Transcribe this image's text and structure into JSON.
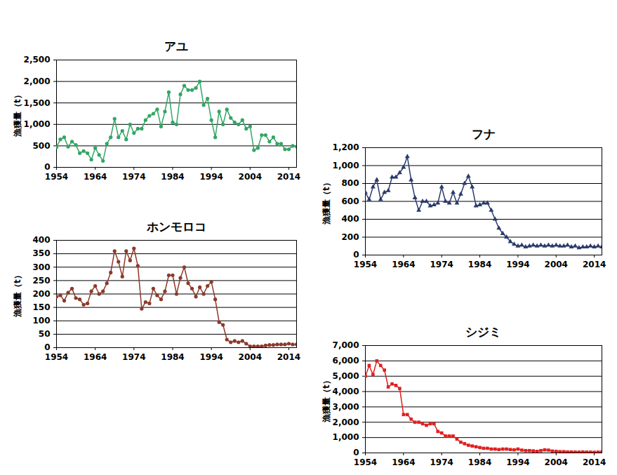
{
  "chart_data": [
    {
      "type": "line",
      "title": "アユ",
      "y_label": "漁獲量（t）",
      "color": "#33a665",
      "marker": "circle",
      "grid": true,
      "x": [
        1954,
        1955,
        1956,
        1957,
        1958,
        1959,
        1960,
        1961,
        1962,
        1963,
        1964,
        1965,
        1966,
        1967,
        1968,
        1969,
        1970,
        1971,
        1972,
        1973,
        1974,
        1975,
        1976,
        1977,
        1978,
        1979,
        1980,
        1981,
        1982,
        1983,
        1984,
        1985,
        1986,
        1987,
        1988,
        1989,
        1990,
        1991,
        1992,
        1993,
        1994,
        1995,
        1996,
        1997,
        1998,
        1999,
        2000,
        2001,
        2002,
        2003,
        2004,
        2005,
        2006,
        2007,
        2008,
        2009,
        2010,
        2011,
        2012,
        2013,
        2014,
        2015,
        2016
      ],
      "values": [
        470,
        650,
        700,
        480,
        600,
        520,
        330,
        380,
        330,
        180,
        450,
        290,
        150,
        550,
        700,
        1130,
        700,
        850,
        650,
        1000,
        800,
        900,
        900,
        1100,
        1200,
        1250,
        1350,
        950,
        1300,
        1750,
        1050,
        1000,
        1700,
        1900,
        1800,
        1800,
        1850,
        2000,
        1450,
        1600,
        1100,
        700,
        1300,
        1000,
        1350,
        1150,
        1050,
        1000,
        1100,
        900,
        950,
        400,
        450,
        750,
        750,
        600,
        700,
        550,
        550,
        420,
        420,
        500,
        480
      ],
      "xlim": [
        1954,
        2016
      ],
      "xticks": [
        1954,
        1964,
        1974,
        1984,
        1994,
        2004,
        2014
      ],
      "ylim": [
        0,
        2500
      ],
      "yticks": [
        0,
        500,
        {
          "value": 1000,
          "label": "1,000"
        },
        {
          "value": 1500,
          "label": "1,500"
        },
        {
          "value": 2000,
          "label": "2,000"
        },
        {
          "value": 2500,
          "label": "2,500"
        }
      ]
    },
    {
      "type": "line",
      "title": "フナ",
      "y_label": "漁獲量（t）",
      "color": "#2b3a6b",
      "marker": "triangle",
      "grid": true,
      "x": [
        1954,
        1955,
        1956,
        1957,
        1958,
        1959,
        1960,
        1961,
        1962,
        1963,
        1964,
        1965,
        1966,
        1967,
        1968,
        1969,
        1970,
        1971,
        1972,
        1973,
        1974,
        1975,
        1976,
        1977,
        1978,
        1979,
        1980,
        1981,
        1982,
        1983,
        1984,
        1985,
        1986,
        1987,
        1988,
        1989,
        1990,
        1991,
        1992,
        1993,
        1994,
        1995,
        1996,
        1997,
        1998,
        1999,
        2000,
        2001,
        2002,
        2003,
        2004,
        2005,
        2006,
        2007,
        2008,
        2009,
        2010,
        2011,
        2012,
        2013,
        2014,
        2015,
        2016
      ],
      "values": [
        700,
        620,
        760,
        840,
        620,
        700,
        720,
        870,
        870,
        920,
        980,
        1100,
        840,
        640,
        500,
        600,
        600,
        550,
        560,
        580,
        760,
        600,
        580,
        700,
        580,
        680,
        800,
        880,
        760,
        550,
        560,
        580,
        580,
        500,
        400,
        300,
        240,
        200,
        150,
        120,
        100,
        110,
        90,
        100,
        110,
        100,
        110,
        100,
        110,
        100,
        110,
        100,
        100,
        110,
        90,
        100,
        80,
        90,
        90,
        100,
        90,
        100,
        90
      ],
      "xlim": [
        1954,
        2016
      ],
      "xticks": [
        1954,
        1964,
        1974,
        1984,
        1994,
        2004,
        2014
      ],
      "ylim": [
        0,
        1200
      ],
      "yticks": [
        0,
        200,
        400,
        600,
        800,
        {
          "value": 1000,
          "label": "1,000"
        },
        {
          "value": 1200,
          "label": "1,200"
        }
      ]
    },
    {
      "type": "line",
      "title": "ホンモロコ",
      "y_label": "漁獲量（t）",
      "color": "#8b3a2b",
      "marker": "circle",
      "grid": true,
      "x": [
        1954,
        1955,
        1956,
        1957,
        1958,
        1959,
        1960,
        1961,
        1962,
        1963,
        1964,
        1965,
        1966,
        1967,
        1968,
        1969,
        1970,
        1971,
        1972,
        1973,
        1974,
        1975,
        1976,
        1977,
        1978,
        1979,
        1980,
        1981,
        1982,
        1983,
        1984,
        1985,
        1986,
        1987,
        1988,
        1989,
        1990,
        1991,
        1992,
        1993,
        1994,
        1995,
        1996,
        1997,
        1998,
        1999,
        2000,
        2001,
        2002,
        2003,
        2004,
        2005,
        2006,
        2007,
        2008,
        2009,
        2010,
        2011,
        2012,
        2013,
        2014,
        2015,
        2016
      ],
      "values": [
        190,
        195,
        175,
        205,
        220,
        185,
        180,
        160,
        165,
        210,
        230,
        200,
        210,
        240,
        280,
        360,
        320,
        265,
        360,
        325,
        370,
        305,
        145,
        170,
        165,
        220,
        195,
        180,
        210,
        270,
        270,
        200,
        260,
        300,
        240,
        220,
        190,
        225,
        200,
        230,
        245,
        180,
        95,
        85,
        30,
        20,
        25,
        20,
        25,
        15,
        5,
        5,
        5,
        5,
        8,
        10,
        10,
        12,
        12,
        12,
        15,
        12,
        12
      ],
      "xlim": [
        1954,
        2016
      ],
      "xticks": [
        1954,
        1964,
        1974,
        1984,
        1994,
        2004,
        2014
      ],
      "ylim": [
        0,
        400
      ],
      "yticks": [
        0,
        50,
        100,
        150,
        200,
        250,
        300,
        350,
        400
      ]
    },
    {
      "type": "line",
      "title": "シジミ",
      "y_label": "漁獲量（t）",
      "color": "#e02020",
      "marker": "square",
      "grid": true,
      "x": [
        1954,
        1955,
        1956,
        1957,
        1958,
        1959,
        1960,
        1961,
        1962,
        1963,
        1964,
        1965,
        1966,
        1967,
        1968,
        1969,
        1970,
        1971,
        1972,
        1973,
        1974,
        1975,
        1976,
        1977,
        1978,
        1979,
        1980,
        1981,
        1982,
        1983,
        1984,
        1985,
        1986,
        1987,
        1988,
        1989,
        1990,
        1991,
        1992,
        1993,
        1994,
        1995,
        1996,
        1997,
        1998,
        1999,
        2000,
        2001,
        2002,
        2003,
        2004,
        2005,
        2006,
        2007,
        2008,
        2009,
        2010,
        2011,
        2012,
        2013,
        2014,
        2015,
        2016
      ],
      "values": [
        5000,
        5700,
        5100,
        6000,
        5700,
        5400,
        4300,
        4500,
        4400,
        4200,
        2500,
        2500,
        2200,
        2000,
        2000,
        1900,
        1800,
        1900,
        1900,
        1400,
        1300,
        1100,
        1100,
        1100,
        900,
        700,
        600,
        500,
        450,
        400,
        350,
        300,
        300,
        250,
        250,
        220,
        250,
        250,
        220,
        200,
        250,
        180,
        150,
        150,
        130,
        100,
        150,
        200,
        180,
        120,
        100,
        80,
        80,
        60,
        60,
        50,
        50,
        60,
        50,
        50,
        40,
        50,
        50
      ],
      "xlim": [
        1954,
        2016
      ],
      "xticks": [
        1954,
        1964,
        1974,
        1984,
        1994,
        2004,
        2014
      ],
      "ylim": [
        0,
        7000
      ],
      "yticks": [
        0,
        {
          "value": 1000,
          "label": "1,000"
        },
        {
          "value": 2000,
          "label": "2,000"
        },
        {
          "value": 3000,
          "label": "3,000"
        },
        {
          "value": 4000,
          "label": "4,000"
        },
        {
          "value": 5000,
          "label": "5,000"
        },
        {
          "value": 6000,
          "label": "6,000"
        },
        {
          "value": 7000,
          "label": "7,000"
        }
      ]
    }
  ]
}
